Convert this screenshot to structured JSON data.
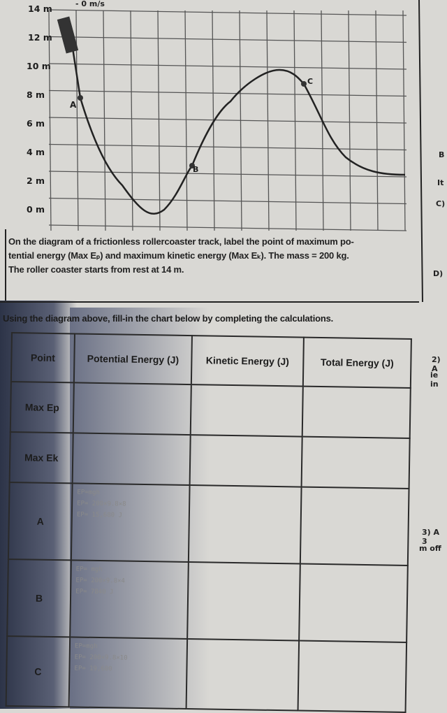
{
  "graph": {
    "top_label": "- 0 m/s",
    "y_labels": [
      "14 m",
      "12 m",
      "10 m",
      "8 m",
      "6 m",
      "4 m",
      "2 m",
      "0 m"
    ],
    "points": [
      {
        "label": "A",
        "height_m": 8
      },
      {
        "label": "B",
        "height_m": 4
      },
      {
        "label": "C",
        "height_m": 10
      }
    ]
  },
  "instructions": {
    "lines": [
      "On the diagram of a frictionless rollercoaster track, label the point of maximum po-",
      "tential energy (Max Eₚ)  and maximum kinetic energy (Max Eₖ). The mass = 200 kg.",
      "The roller coaster starts from rest at 14 m."
    ],
    "table_intro": "Using the diagram above, fill-in the chart below by completing the calculations."
  },
  "table": {
    "headers": [
      "Point",
      "Potential Energy (J)",
      "Kinetic Energy (J)",
      "Total Energy (J)"
    ],
    "rows": [
      {
        "point": "Max Ep",
        "pe": []
      },
      {
        "point": "Max Ek",
        "pe": []
      },
      {
        "point": "A",
        "pe": [
          "EP=mgh",
          "EP= 200×9.8×8",
          "EP= 15,680 J"
        ]
      },
      {
        "point": "B",
        "pe": [
          "EP= mgh",
          "EP= 200×9.8×4",
          "EP= 7840 J"
        ]
      },
      {
        "point": "C",
        "pe": [
          "EP=mgh",
          "EP= 200×9.8×10",
          "EP= 19,600"
        ]
      }
    ]
  },
  "margin_fragments": [
    "B",
    "It",
    "C)",
    "D)",
    "2) A",
    "ie in",
    "3) A 3",
    "m off"
  ]
}
